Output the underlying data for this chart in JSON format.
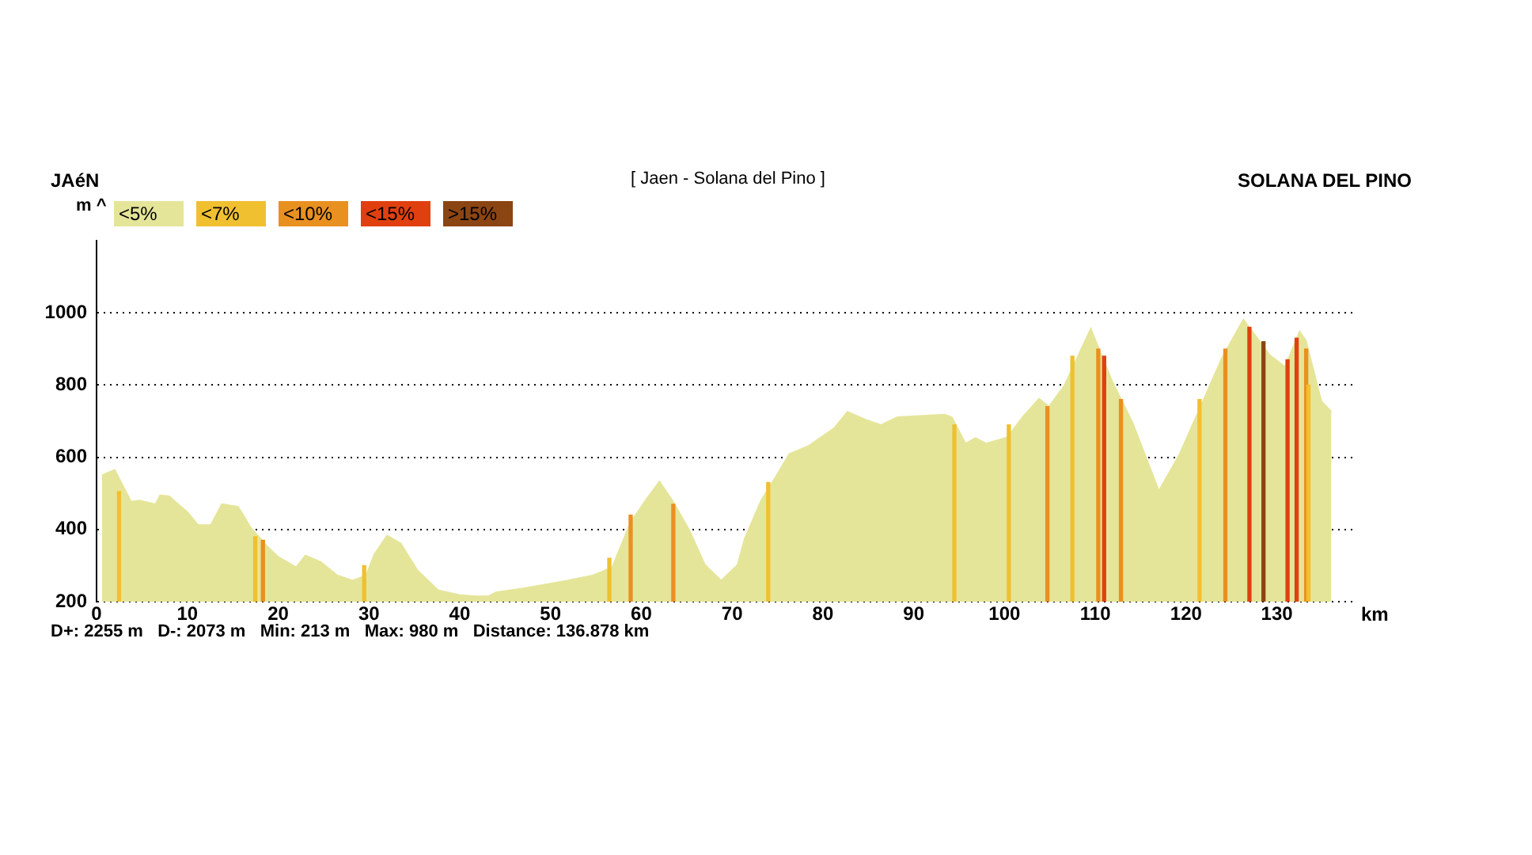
{
  "chart_data": {
    "type": "area",
    "title": "[ Jaen - Solana del Pino ]",
    "xlabel": "km",
    "ylabel": "m ^",
    "annotations": [
      "JAéN",
      "SOLANA DEL PINO",
      "D+: 2255 m   D-: 2073 m   Min: 213 m   Max: 980 m   Distance: 136.878 km"
    ],
    "xlim": [
      0,
      138.4
    ],
    "xticks": [
      0,
      10,
      20,
      30,
      40,
      50,
      60,
      70,
      80,
      90,
      100,
      110,
      120,
      130
    ],
    "ylim": [
      200,
      1200
    ],
    "yticks": [
      200,
      400,
      600,
      800,
      1000
    ],
    "grid": "y",
    "legend": "top left",
    "series": [
      {
        "name": "<5%",
        "color": "#e5e59a",
        "x": [
          0.6,
          2,
          3.8,
          4.7,
          6.5,
          7,
          8,
          10,
          11.2,
          12.6,
          13.8,
          15.6,
          17,
          18.8,
          20,
          22,
          23,
          24.7,
          26.5,
          28.2,
          29.7,
          30.6,
          32,
          33.5,
          35.3,
          37.6,
          40,
          41.8,
          43.2,
          44,
          47,
          49.4,
          51.8,
          54.7,
          56.8,
          58.8,
          60.6,
          62,
          63.5,
          65.3,
          67,
          68.8,
          70.6,
          71.4,
          73.2,
          74.9,
          76.3,
          78.4,
          81.3,
          82.7,
          84.7,
          86.4,
          88.2,
          90.5,
          93.4,
          94.2,
          95.7,
          96.8,
          98,
          100.3,
          102,
          103.8,
          104.9,
          106.6,
          109.5,
          111.8,
          114.1,
          117,
          119.3,
          121.6,
          123.9,
          126.3,
          127.4,
          129.2,
          130.9,
          132.5,
          133.2,
          134.9,
          136
        ],
        "values": [
          550,
          565,
          477,
          480,
          470,
          495,
          492,
          448,
          412,
          412,
          470,
          463,
          404,
          353,
          324,
          295,
          328,
          310,
          273,
          258,
          273,
          331,
          383,
          361,
          288,
          232,
          218,
          215,
          215,
          226,
          237,
          247,
          258,
          273,
          295,
          419,
          485,
          533,
          477,
          397,
          302,
          258,
          302,
          375,
          480,
          550,
          609,
          631,
          682,
          726,
          704,
          689,
          711,
          714,
          718,
          711,
          638,
          653,
          638,
          655,
          711,
          762,
          740,
          799,
          956,
          813,
          696,
          507,
          609,
          740,
          872,
          981,
          945,
          883,
          850,
          948,
          923,
          755,
          726
        ]
      },
      {
        "name": "<7%",
        "type": "bar",
        "color": "#f0c030",
        "x": [
          3,
          18,
          30,
          57,
          74.5,
          95,
          101,
          108,
          122,
          134
        ],
        "values": [
          505,
          380,
          300,
          320,
          530,
          690,
          690,
          880,
          760,
          800
        ]
      },
      {
        "name": "<10%",
        "type": "bar",
        "color": "#e89020",
        "x": [
          18.5,
          59,
          63.7,
          104.9,
          110.5,
          113,
          124.5,
          133.4
        ],
        "values": [
          370,
          440,
          470,
          740,
          900,
          760,
          900,
          900
        ]
      },
      {
        "name": "<15%",
        "type": "bar",
        "color": "#e04010",
        "x": [
          110.8,
          126.8,
          131,
          132
        ],
        "values": [
          880,
          960,
          870,
          930
        ]
      },
      {
        "name": ">15%",
        "type": "bar",
        "color": "#8b4513",
        "x": [
          128
        ],
        "values": [
          920
        ]
      }
    ]
  }
}
